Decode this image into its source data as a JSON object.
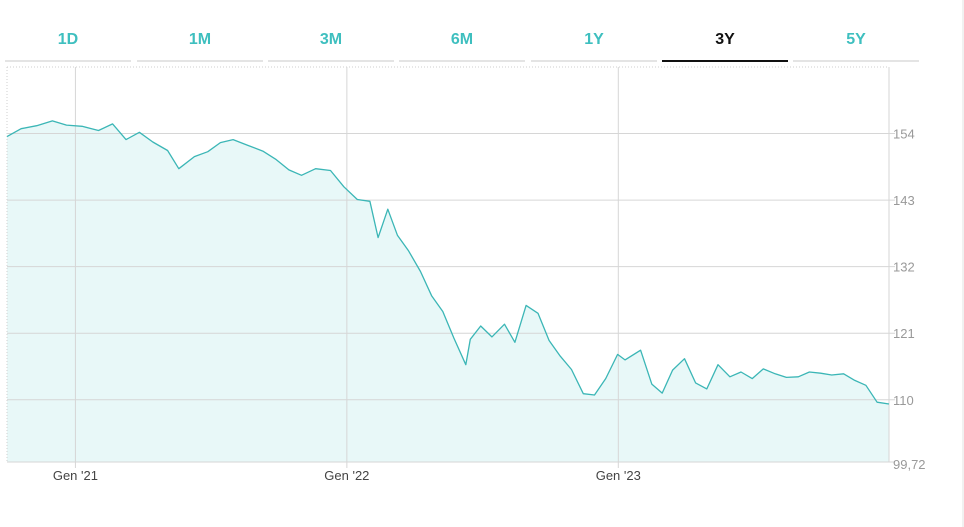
{
  "tabs": [
    {
      "label": "1D",
      "active": false
    },
    {
      "label": "1M",
      "active": false
    },
    {
      "label": "3M",
      "active": false
    },
    {
      "label": "6M",
      "active": false
    },
    {
      "label": "1Y",
      "active": false
    },
    {
      "label": "3Y",
      "active": true
    },
    {
      "label": "5Y",
      "active": false
    }
  ],
  "colors": {
    "accent": "#3ebfbf",
    "line": "#3bb6b6",
    "fill": "#e8f8f8",
    "grid": "#d6d6d6"
  },
  "chart_data": {
    "type": "area",
    "title": "",
    "xlabel": "",
    "ylabel": "",
    "ylim": [
      99.72,
      165
    ],
    "ytick_values": [
      154,
      143,
      132,
      121,
      110,
      99.72
    ],
    "ytick_labels": [
      "154",
      "143",
      "132",
      "121",
      "110",
      "99,72"
    ],
    "xtick_labels": [
      "Gen '21",
      "Gen '22",
      "Gen '23"
    ],
    "xtick_values": [
      "2021-01-01",
      "2022-01-01",
      "2023-01-01"
    ],
    "x_range": [
      "2020-10-01",
      "2023-12-31"
    ],
    "grid": true,
    "series": [
      {
        "x": [
          "2020-10-01",
          "2020-10-20",
          "2020-11-10",
          "2020-12-01",
          "2020-12-20",
          "2021-01-10",
          "2021-02-01",
          "2021-02-20",
          "2021-03-10",
          "2021-03-28",
          "2021-04-15",
          "2021-05-05",
          "2021-05-20",
          "2021-06-10",
          "2021-06-28",
          "2021-07-15",
          "2021-08-01",
          "2021-08-20",
          "2021-09-10",
          "2021-09-28",
          "2021-10-15",
          "2021-11-01",
          "2021-11-20",
          "2021-12-10",
          "2021-12-28",
          "2022-01-15",
          "2022-02-01",
          "2022-02-12",
          "2022-02-25",
          "2022-03-10",
          "2022-03-25",
          "2022-04-10",
          "2022-04-25",
          "2022-05-10",
          "2022-05-25",
          "2022-06-10",
          "2022-06-16",
          "2022-06-30",
          "2022-07-15",
          "2022-08-01",
          "2022-08-15",
          "2022-08-30",
          "2022-09-15",
          "2022-09-30",
          "2022-10-15",
          "2022-10-30",
          "2022-11-15",
          "2022-11-30",
          "2022-12-15",
          "2022-12-31",
          "2023-01-10",
          "2023-01-31",
          "2023-02-15",
          "2023-03-01",
          "2023-03-15",
          "2023-03-31",
          "2023-04-15",
          "2023-04-30",
          "2023-05-15",
          "2023-05-31",
          "2023-06-15",
          "2023-06-30",
          "2023-07-15",
          "2023-07-31",
          "2023-08-15",
          "2023-08-31",
          "2023-09-15",
          "2023-09-30",
          "2023-10-15",
          "2023-10-31",
          "2023-11-15",
          "2023-11-30",
          "2023-12-15",
          "2023-12-31"
        ],
        "y": [
          153.5,
          154.8,
          155.3,
          156.1,
          155.4,
          155.2,
          154.5,
          155.6,
          153.0,
          154.2,
          152.6,
          151.2,
          148.2,
          150.2,
          151.0,
          152.5,
          153.0,
          152.1,
          151.1,
          149.7,
          148.0,
          147.1,
          148.2,
          147.9,
          145.2,
          143.1,
          142.8,
          136.8,
          141.5,
          137.2,
          134.6,
          131.2,
          127.2,
          124.6,
          120.2,
          115.8,
          120.0,
          122.2,
          120.4,
          122.5,
          119.5,
          125.6,
          124.3,
          119.8,
          117.2,
          115.0,
          111.0,
          110.8,
          113.5,
          117.5,
          116.6,
          118.2,
          112.6,
          111.1,
          114.9,
          116.8,
          112.8,
          111.8,
          115.8,
          113.8,
          114.6,
          113.5,
          115.1,
          114.3,
          113.7,
          113.8,
          114.6,
          114.4,
          114.1,
          114.3,
          113.2,
          112.4,
          109.6,
          109.3
        ]
      }
    ]
  }
}
